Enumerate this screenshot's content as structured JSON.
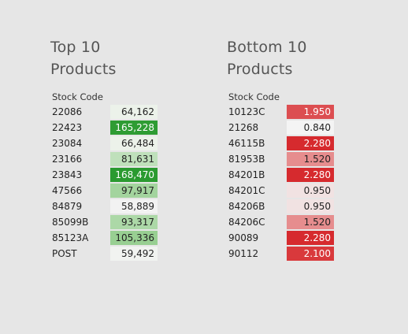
{
  "top": {
    "title_line1": "Top 10",
    "title_line2": "Products",
    "column_header": "Stock Code",
    "rows": [
      {
        "code": "22086",
        "value": "64,162",
        "bg": "#ecf2ea",
        "dark": false
      },
      {
        "code": "22423",
        "value": "165,228",
        "bg": "#2e9c33",
        "dark": true
      },
      {
        "code": "23084",
        "value": "66,484",
        "bg": "#ecf2ea",
        "dark": false
      },
      {
        "code": "23166",
        "value": "81,631",
        "bg": "#bfe0bb",
        "dark": false
      },
      {
        "code": "23843",
        "value": "168,470",
        "bg": "#2a9a30",
        "dark": true
      },
      {
        "code": "47566",
        "value": "97,917",
        "bg": "#a3d49e",
        "dark": false
      },
      {
        "code": "84879",
        "value": "58,889",
        "bg": "#f2f2f2",
        "dark": false
      },
      {
        "code": "85099B",
        "value": "93,317",
        "bg": "#acd8a7",
        "dark": false
      },
      {
        "code": "85123A",
        "value": "105,336",
        "bg": "#98cf92",
        "dark": false
      },
      {
        "code": "POST",
        "value": "59,492",
        "bg": "#f1f3f0",
        "dark": false
      }
    ]
  },
  "bottom": {
    "title_line1": "Bottom 10",
    "title_line2": "Products",
    "column_header": "Stock Code",
    "rows": [
      {
        "code": "10123C",
        "value": "1.950",
        "bg": "#dc4e51",
        "dark": true
      },
      {
        "code": "21268",
        "value": "0.840",
        "bg": "#f4f4f4",
        "dark": false
      },
      {
        "code": "46115B",
        "value": "2.280",
        "bg": "#d62a2e",
        "dark": true
      },
      {
        "code": "81953B",
        "value": "1.520",
        "bg": "#e68d8e",
        "dark": false
      },
      {
        "code": "84201B",
        "value": "2.280",
        "bg": "#d62a2e",
        "dark": true
      },
      {
        "code": "84201C",
        "value": "0.950",
        "bg": "#f1e2e2",
        "dark": false
      },
      {
        "code": "84206B",
        "value": "0.950",
        "bg": "#f1e2e2",
        "dark": false
      },
      {
        "code": "84206C",
        "value": "1.520",
        "bg": "#e68d8e",
        "dark": false
      },
      {
        "code": "90089",
        "value": "2.280",
        "bg": "#d62a2e",
        "dark": true
      },
      {
        "code": "90112",
        "value": "2.100",
        "bg": "#d9393c",
        "dark": true
      }
    ]
  }
}
